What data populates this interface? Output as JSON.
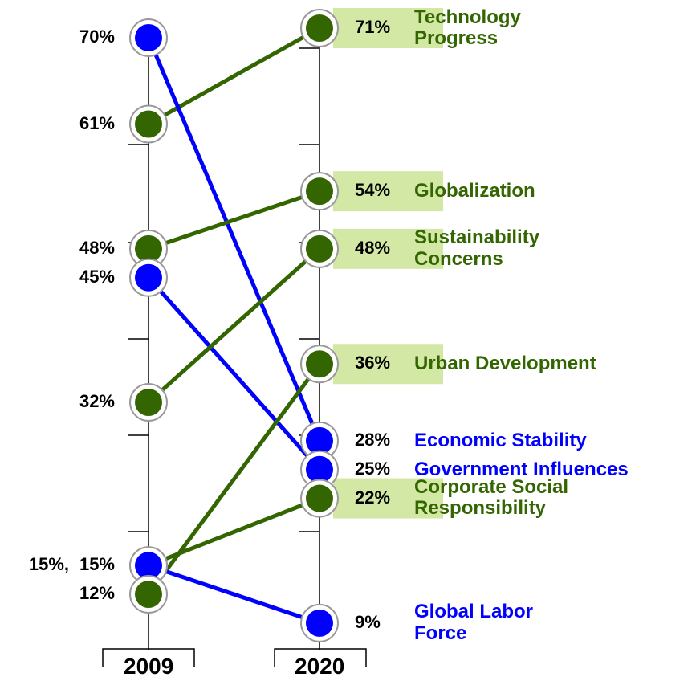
{
  "chart_data": {
    "type": "slope",
    "categories": [
      "2009",
      "2020"
    ],
    "series": [
      {
        "name": "Technology\nProgress",
        "color": "#336600",
        "values": [
          61,
          71
        ],
        "value_labels": [
          "61%",
          "71%"
        ]
      },
      {
        "name": "Economic Stability",
        "color": "#0000ff",
        "values": [
          70,
          28
        ],
        "value_labels": [
          "70%",
          "28%"
        ]
      },
      {
        "name": "Globalization",
        "color": "#336600",
        "values": [
          48,
          54
        ],
        "value_labels": [
          "48%",
          "54%"
        ]
      },
      {
        "name": "Government Influences",
        "color": "#0000ff",
        "values": [
          45,
          25
        ],
        "value_labels": [
          "45%",
          "25%"
        ]
      },
      {
        "name": "Sustainability\nConcerns",
        "color": "#336600",
        "values": [
          32,
          48
        ],
        "value_labels": [
          "32%",
          "48%"
        ]
      },
      {
        "name": "Urban Development",
        "color": "#336600",
        "values": [
          12,
          36
        ],
        "value_labels": [
          "12%",
          "36%"
        ]
      },
      {
        "name": "Corporate Social\nResponsibility",
        "color": "#336600",
        "values": [
          15,
          22
        ],
        "value_labels": [
          "15%,",
          "22%"
        ]
      },
      {
        "name": "Global Labor\nForce",
        "color": "#0000ff",
        "values": [
          15,
          9
        ],
        "value_labels": [
          "15%",
          "9%"
        ]
      }
    ],
    "highlight_color": "#d3e8a4"
  }
}
